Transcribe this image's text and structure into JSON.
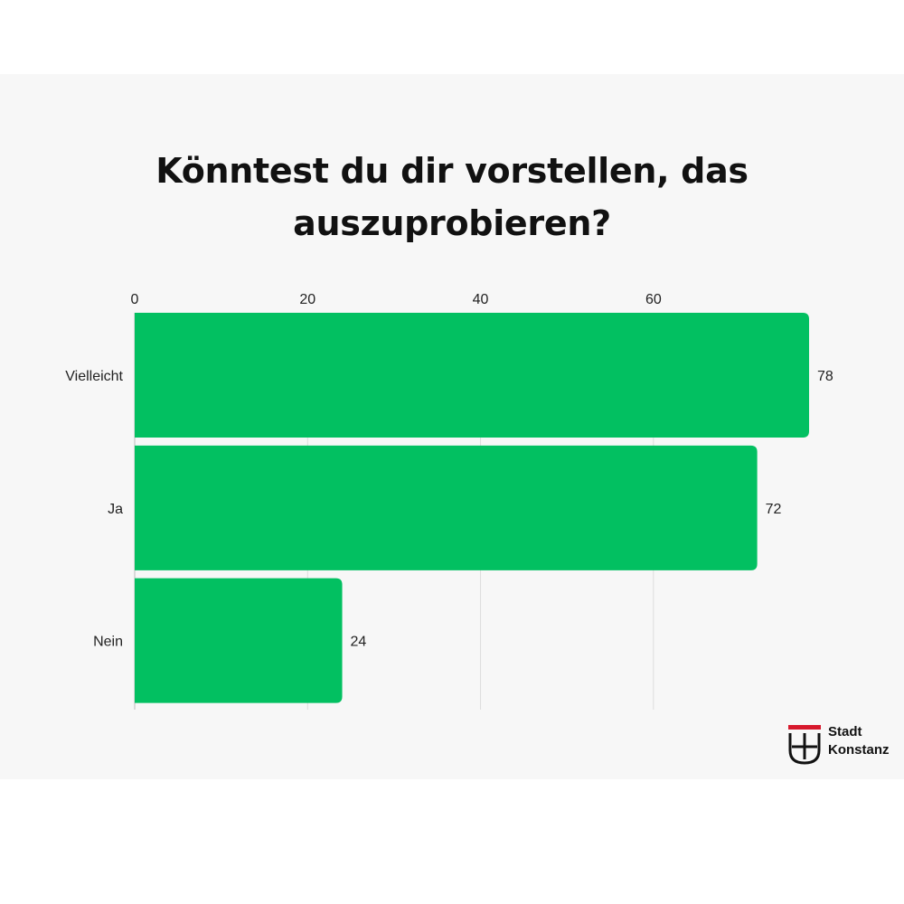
{
  "title": "Könntest du dir vorstellen, das auszuprobieren?",
  "chart_data": {
    "type": "bar",
    "orientation": "horizontal",
    "categories": [
      "Vielleicht",
      "Ja",
      "Nein"
    ],
    "values": [
      78,
      72,
      24
    ],
    "xticks": [
      0,
      20,
      40,
      60
    ],
    "xlim": [
      0,
      78
    ],
    "xaxis_position": "top",
    "grid": true,
    "bar_color": "#02c061",
    "title": "Könntest du dir vorstellen, das auszuprobieren?"
  },
  "logo": {
    "line1": "Stadt",
    "line2": "Konstanz",
    "accent_color": "#d7192d",
    "icon": "konstanz-shield-cross-icon"
  },
  "colors": {
    "background": "#f7f7f7",
    "bar": "#02c061",
    "grid": "#dcdcdc"
  }
}
